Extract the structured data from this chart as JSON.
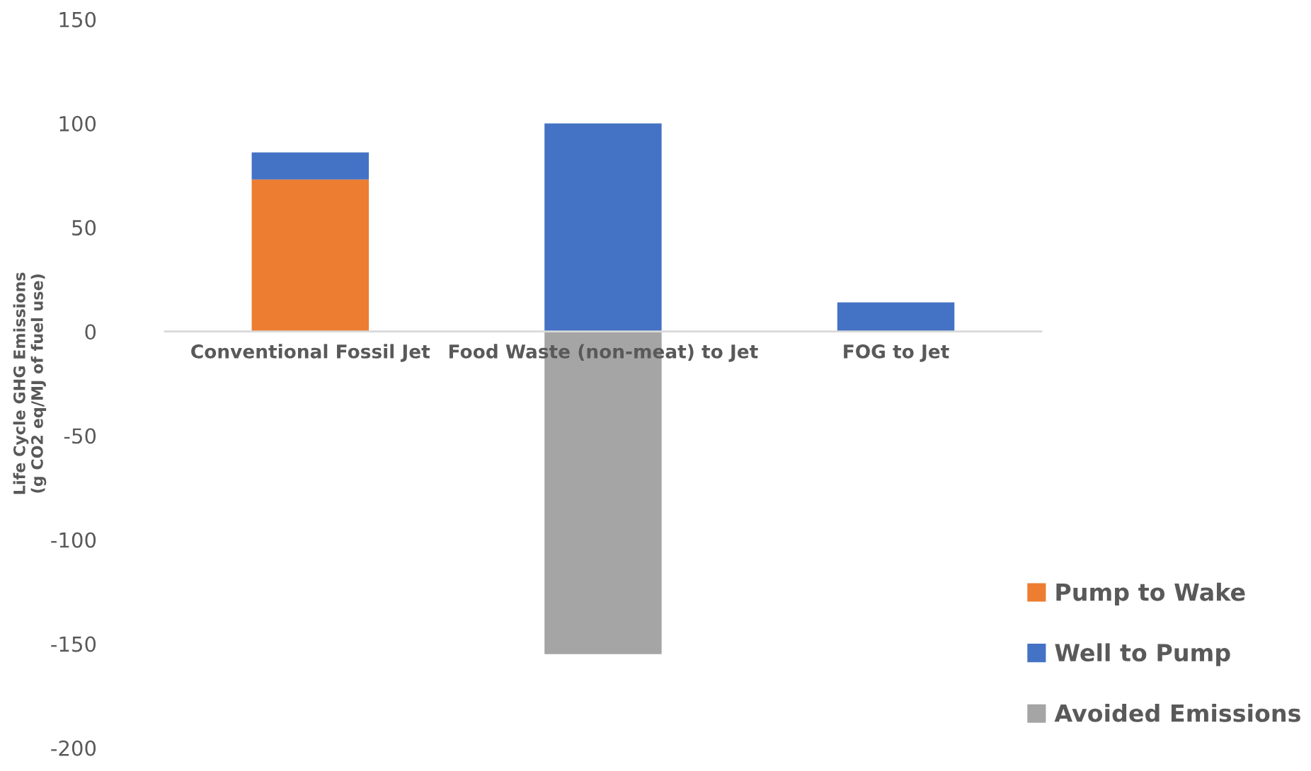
{
  "chart_data": {
    "type": "bar",
    "stacked": true,
    "ylabel": "Life Cycle GHG Emissions\n(g CO2 eq/MJ of fuel use)",
    "categories": [
      "Conventional Fossil Jet",
      "Food Waste (non-meat) to Jet",
      "FOG to Jet"
    ],
    "series": [
      {
        "name": "Pump to Wake",
        "color": "#ed7d31",
        "values": [
          73,
          null,
          null
        ]
      },
      {
        "name": "Well to Pump",
        "color": "#4472c4",
        "values": [
          13,
          100,
          14
        ]
      },
      {
        "name": "Avoided Emissions",
        "color": "#a5a5a5",
        "values": [
          null,
          -155,
          null
        ]
      }
    ],
    "ylim": [
      -200,
      150
    ],
    "yticks": [
      -200,
      -150,
      -100,
      -50,
      0,
      50,
      100,
      150
    ],
    "grid": false,
    "legend": "bottom right"
  }
}
